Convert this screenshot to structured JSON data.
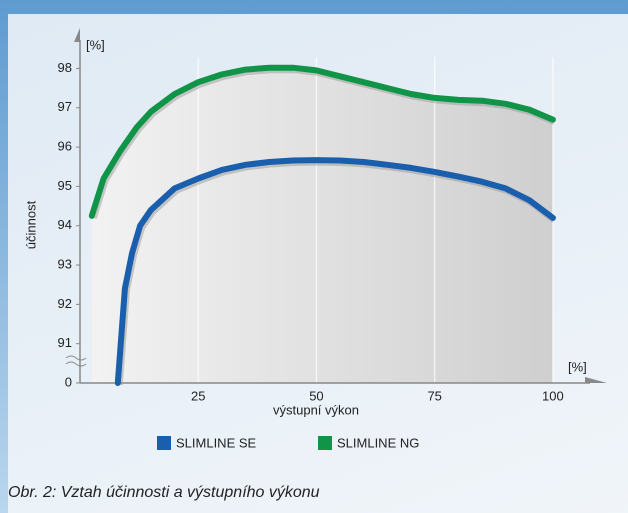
{
  "chart_data": {
    "type": "line",
    "y_unit": "[%]",
    "x_unit": "[%]",
    "ylabel": "účinnost",
    "xlabel": "výstupní výkon",
    "caption": "Obr. 2: Vztah účinnosti a výstupního výkonu",
    "xlim": [
      0,
      107
    ],
    "xticks": [
      25,
      50,
      75,
      100
    ],
    "ylim": [
      0,
      98.8
    ],
    "yticks": [
      0,
      91,
      92,
      93,
      94,
      95,
      96,
      97,
      98
    ],
    "y_break": [
      0,
      91
    ],
    "grid": true,
    "series": [
      {
        "name": "SLIMLINE SE",
        "color": "#1a5fad",
        "x": [
          8,
          9.5,
          11,
          12.7,
          15,
          20,
          25,
          30,
          35,
          40,
          45,
          50,
          55,
          60,
          65,
          70,
          75,
          80,
          85,
          90,
          95,
          100
        ],
        "values": [
          0,
          92.4,
          93.3,
          94.0,
          94.4,
          94.95,
          95.2,
          95.42,
          95.55,
          95.62,
          95.66,
          95.67,
          95.66,
          95.62,
          95.55,
          95.47,
          95.37,
          95.25,
          95.12,
          94.95,
          94.65,
          94.2
        ]
      },
      {
        "name": "SLIMLINE NG",
        "color": "#0f9448",
        "x": [
          2.5,
          5,
          8.5,
          12,
          15,
          20,
          25,
          30,
          35,
          40,
          45,
          50,
          55,
          60,
          65,
          70,
          75,
          80,
          85,
          90,
          95,
          100
        ],
        "values": [
          94.25,
          95.2,
          95.9,
          96.5,
          96.9,
          97.35,
          97.65,
          97.85,
          97.97,
          98.02,
          98.02,
          97.95,
          97.8,
          97.65,
          97.5,
          97.35,
          97.25,
          97.2,
          97.18,
          97.1,
          96.95,
          96.7
        ]
      }
    ]
  }
}
